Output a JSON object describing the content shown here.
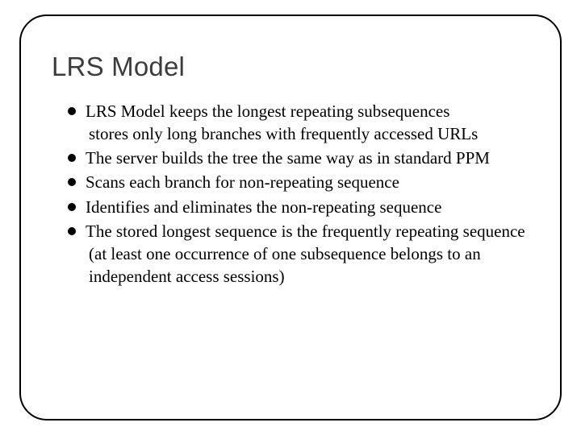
{
  "slide": {
    "title": "LRS Model",
    "title_color": "#3c3c3c",
    "title_fontsize": 33,
    "title_font": "Arial",
    "body_font": "Georgia",
    "body_fontsize": 21,
    "body_color": "#000000",
    "background_color": "#ffffff",
    "frame": {
      "border_color": "#000000",
      "border_width": 2,
      "border_radius": 34
    },
    "bullet": {
      "shape": "filled-circle",
      "color": "#000000",
      "size": 10
    },
    "items": [
      {
        "text": "LRS Model keeps the longest repeating subsequences",
        "cont": " stores only long branches with frequently accessed URLs"
      },
      {
        "text": "The server builds the tree the same way as in standard PPM"
      },
      {
        "text": "Scans each branch for non-repeating sequence"
      },
      {
        "text": "Identifies and eliminates the non-repeating sequence"
      },
      {
        "text": "The stored longest sequence is the frequently repeating sequence",
        "cont": " (at least one occurrence of one subsequence belongs to an independent access sessions)"
      }
    ]
  }
}
